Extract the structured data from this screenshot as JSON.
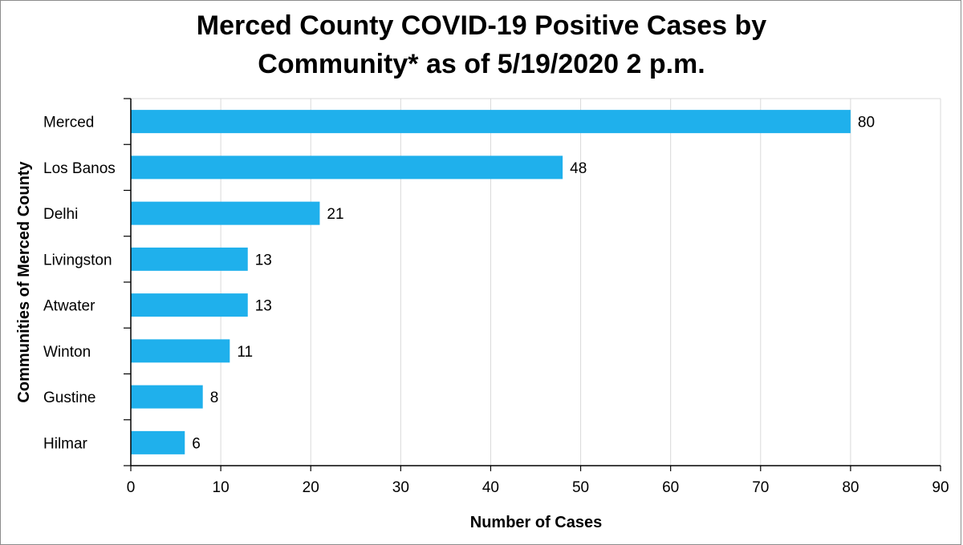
{
  "chart_data": {
    "type": "bar",
    "orientation": "horizontal",
    "title_lines": [
      "Merced County COVID-19 Positive Cases by",
      "Community* as of 5/19/2020 2 p.m."
    ],
    "xlabel": "Number of Cases",
    "ylabel": "Communities of Merced County",
    "categories": [
      "Merced",
      "Los Banos",
      "Delhi",
      "Livingston",
      "Atwater",
      "Winton",
      "Gustine",
      "Hilmar"
    ],
    "values": [
      80,
      48,
      21,
      13,
      13,
      11,
      8,
      6
    ],
    "xlim": [
      0,
      90
    ],
    "xticks": [
      0,
      10,
      20,
      30,
      40,
      50,
      60,
      70,
      80,
      90
    ],
    "grid": "vertical",
    "data_labels": true,
    "bar_color": "#1FB0EC",
    "grid_color": "#d9d9d9"
  }
}
